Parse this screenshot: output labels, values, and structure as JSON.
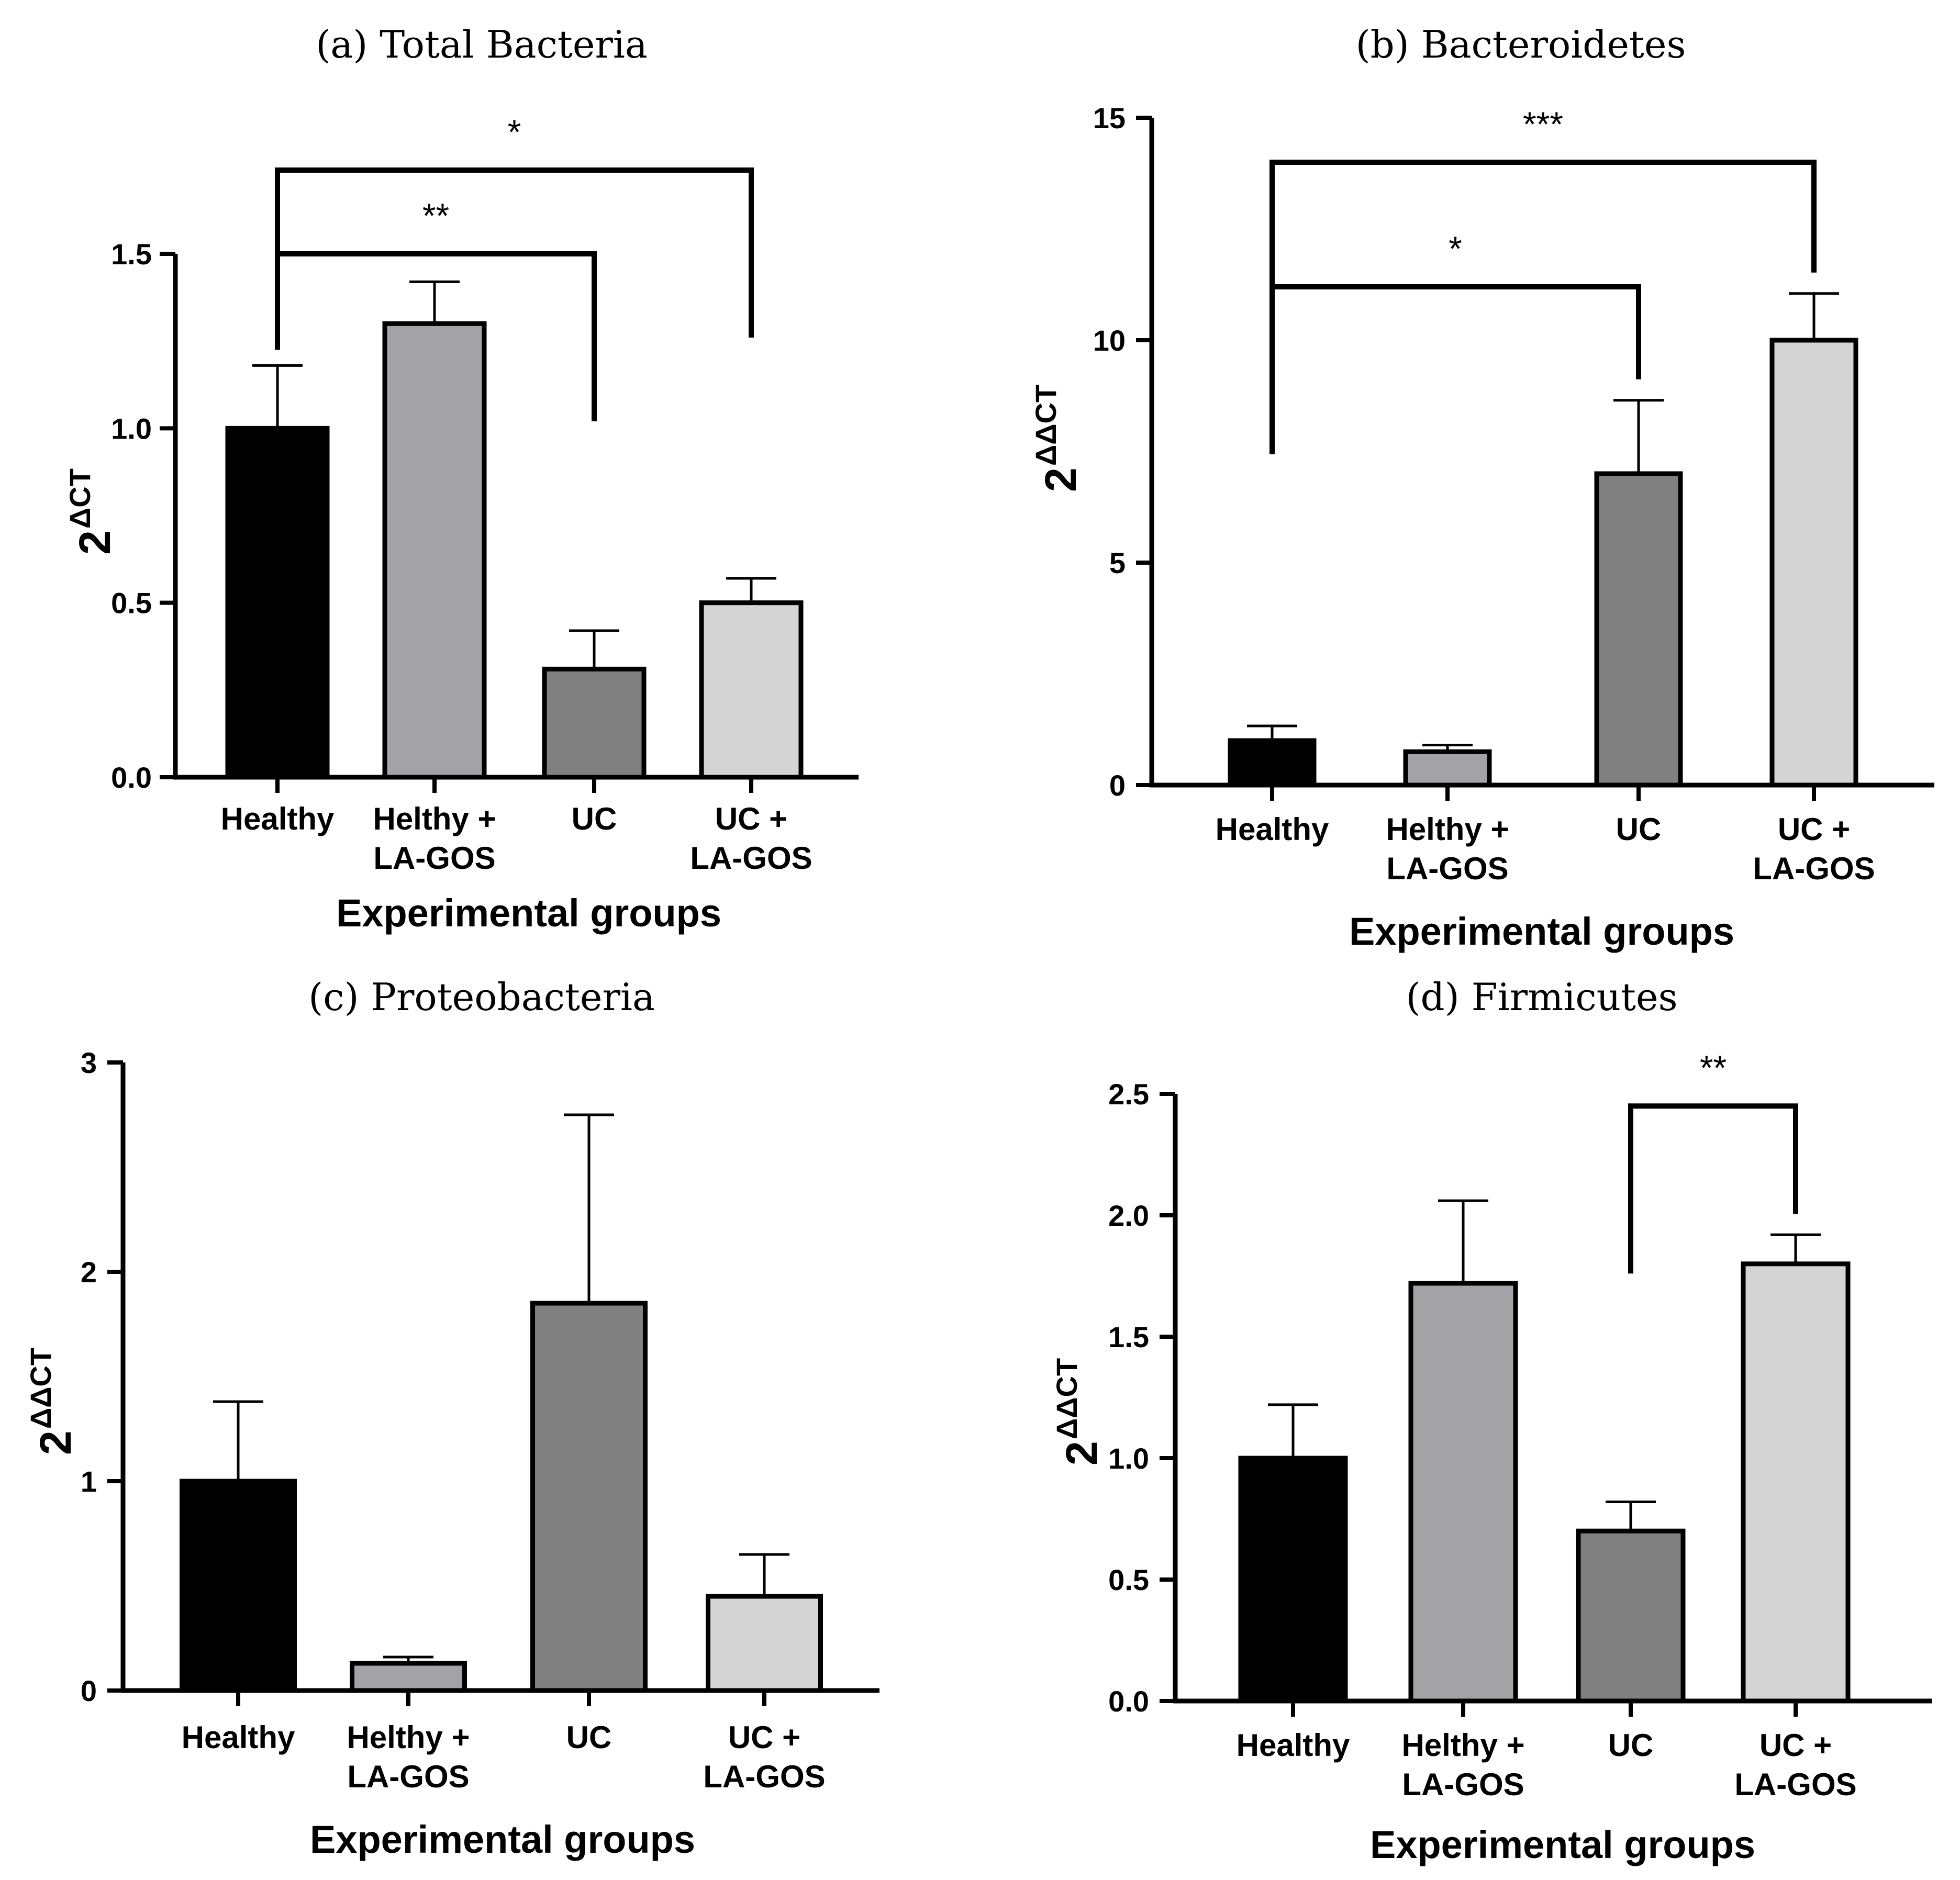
{
  "colors": {
    "Healthy": "#000000",
    "Helthy + LA-GOS": "#a3a3a7",
    "UC": "#808080",
    "UC + LA-GOS": "#d4d4d4",
    "axis": "#000000"
  },
  "chart_data": [
    {
      "id": "a",
      "type": "bar",
      "title": "(a) Total Bacteria",
      "categories": [
        "Healthy",
        "Helthy + LA-GOS",
        "UC",
        "UC + LA-GOS"
      ],
      "category_lines": [
        [
          "Healthy"
        ],
        [
          "Helthy +",
          "LA-GOS"
        ],
        [
          "UC"
        ],
        [
          "UC +",
          "LA-GOS"
        ]
      ],
      "values": [
        1.0,
        1.3,
        0.31,
        0.5
      ],
      "errors": [
        0.18,
        0.12,
        0.11,
        0.07
      ],
      "xlabel": "Experimental groups",
      "ylabel_base": "2",
      "ylabel_sup": "ΔCT",
      "ylim": [
        0,
        1.5
      ],
      "yticks": [
        0.0,
        0.5,
        1.0,
        1.5
      ],
      "ytick_labels": [
        "0.0",
        "0.5",
        "1.0",
        "1.5"
      ],
      "significance": [
        {
          "from": 0,
          "to": 2,
          "label": "**",
          "level": 1.5
        },
        {
          "from": 0,
          "to": 3,
          "label": "*",
          "level": 1.74
        }
      ]
    },
    {
      "id": "b",
      "type": "bar",
      "title": "(b) Bacteroidetes",
      "categories": [
        "Healthy",
        "Helthy + LA-GOS",
        "UC",
        "UC + LA-GOS"
      ],
      "category_lines": [
        [
          "Healthy"
        ],
        [
          "Helthy +",
          "LA-GOS"
        ],
        [
          "UC"
        ],
        [
          "UC +",
          "LA-GOS"
        ]
      ],
      "values": [
        1.0,
        0.75,
        7.0,
        10.0
      ],
      "errors": [
        0.33,
        0.15,
        1.65,
        1.05
      ],
      "xlabel": "Experimental groups",
      "ylabel_base": "2",
      "ylabel_sup": "ΔΔCT",
      "ylim": [
        0,
        15
      ],
      "yticks": [
        0,
        5,
        10,
        15
      ],
      "ytick_labels": [
        "0",
        "5",
        "10",
        "15"
      ],
      "significance": [
        {
          "from": 0,
          "to": 2,
          "label": "*",
          "level": 11.2
        },
        {
          "from": 0,
          "to": 3,
          "label": "***",
          "level": 14.0
        }
      ]
    },
    {
      "id": "c",
      "type": "bar",
      "title": "(c) Proteobacteria",
      "categories": [
        "Healthy",
        "Helthy + LA-GOS",
        "UC",
        "UC + LA-GOS"
      ],
      "category_lines": [
        [
          "Healthy"
        ],
        [
          "Helthy +",
          "LA-GOS"
        ],
        [
          "UC"
        ],
        [
          "UC +",
          "LA-GOS"
        ]
      ],
      "values": [
        1.0,
        0.13,
        1.85,
        0.45
      ],
      "errors": [
        0.38,
        0.03,
        0.9,
        0.2
      ],
      "xlabel": "Experimental groups",
      "ylabel_base": "2",
      "ylabel_sup": "ΔΔCT",
      "ylim": [
        0,
        3
      ],
      "yticks": [
        0,
        1,
        2,
        3
      ],
      "ytick_labels": [
        "0",
        "1",
        "2",
        "3"
      ],
      "significance": []
    },
    {
      "id": "d",
      "type": "bar",
      "title": "(d) Firmicutes",
      "categories": [
        "Healthy",
        "Helthy + LA-GOS",
        "UC",
        "UC + LA-GOS"
      ],
      "category_lines": [
        [
          "Healthy"
        ],
        [
          "Helthy +",
          "LA-GOS"
        ],
        [
          "UC"
        ],
        [
          "UC +",
          "LA-GOS"
        ]
      ],
      "values": [
        1.0,
        1.72,
        0.7,
        1.8
      ],
      "errors": [
        0.22,
        0.34,
        0.12,
        0.12
      ],
      "xlabel": "Experimental groups",
      "ylabel_base": "2",
      "ylabel_sup": "ΔΔCT",
      "ylim": [
        0,
        2.5
      ],
      "yticks": [
        0.0,
        0.5,
        1.0,
        1.5,
        2.0,
        2.5
      ],
      "ytick_labels": [
        "0.0",
        "0.5",
        "1.0",
        "1.5",
        "2.0",
        "2.5"
      ],
      "significance": [
        {
          "from": 2,
          "to": 3,
          "label": "**",
          "level": 2.45
        }
      ]
    }
  ]
}
